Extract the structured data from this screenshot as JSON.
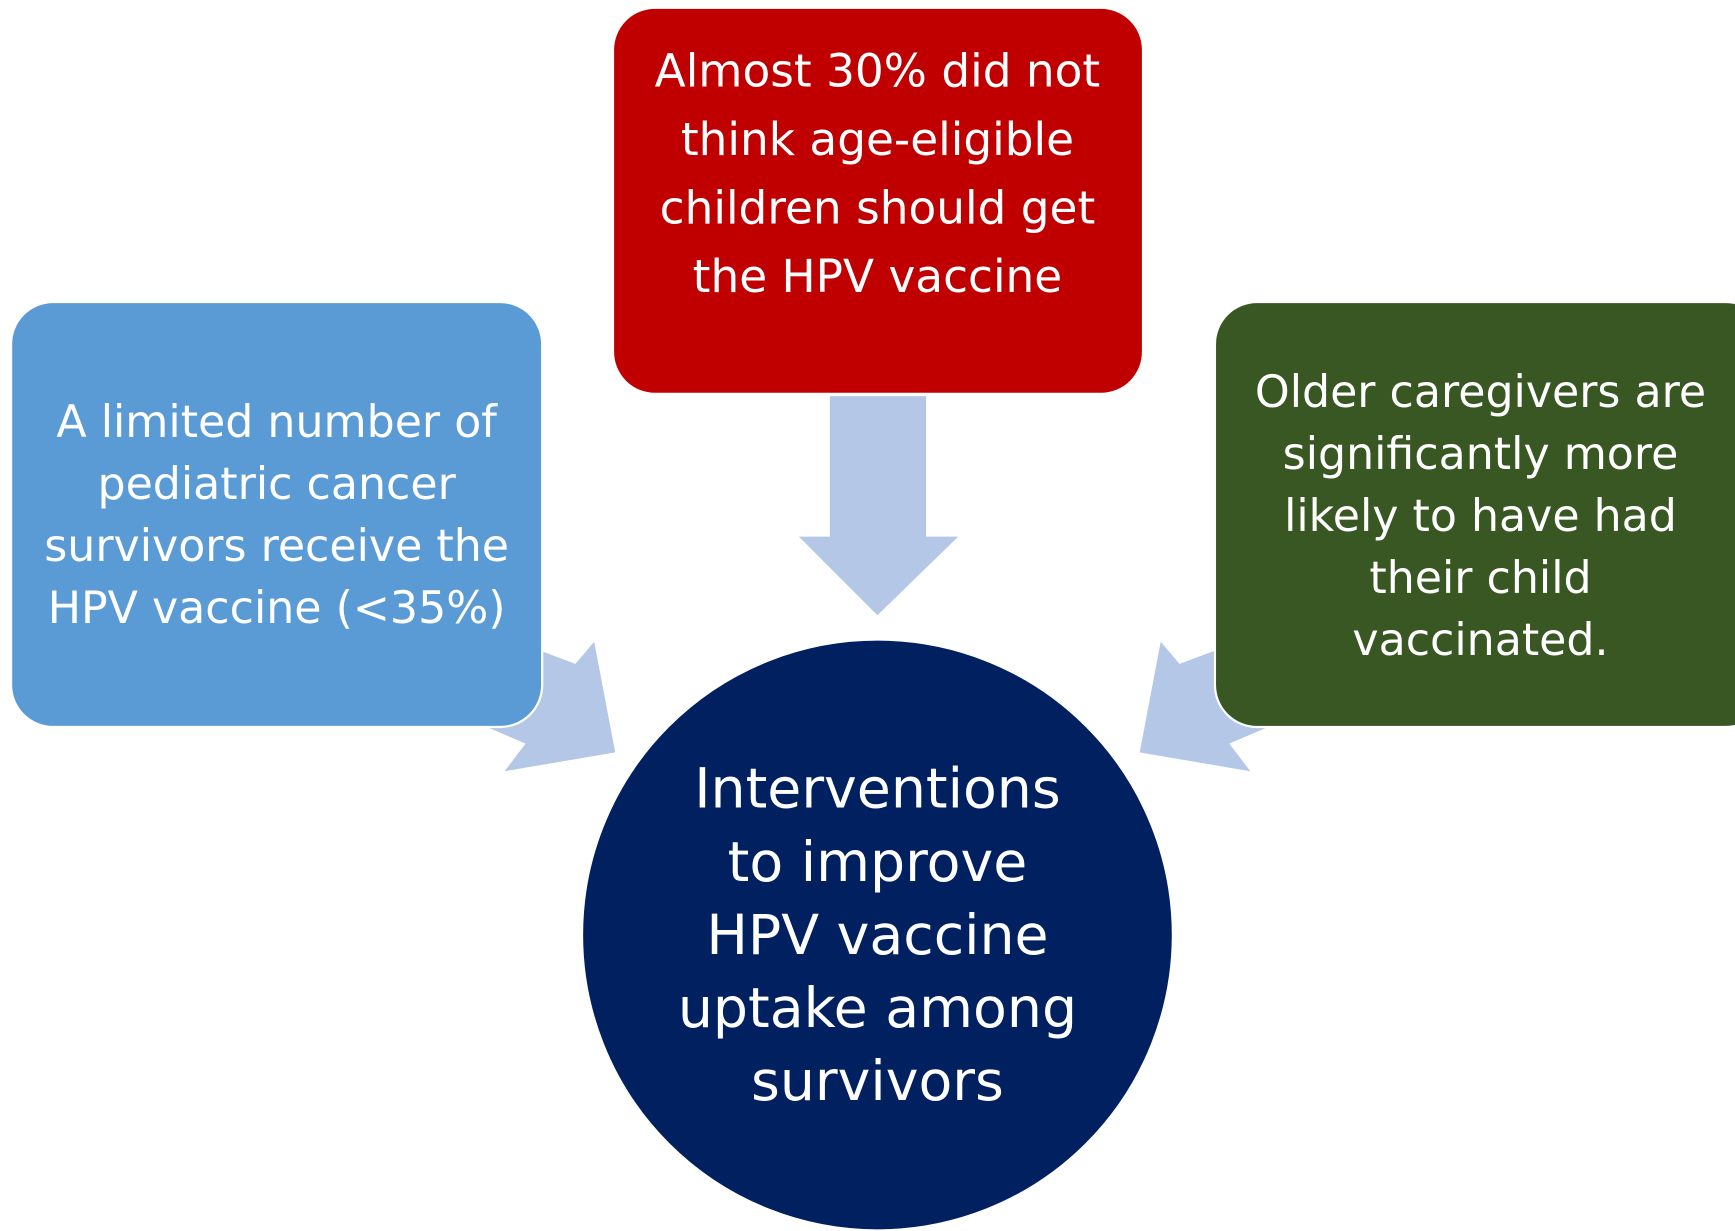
{
  "nodes": [
    {
      "lines": [
        "A limited number of",
        "pediatric cancer",
        "survivors receive the",
        "HPV vaccine (<35%)"
      ]
    },
    {
      "lines": [
        "Almost 30% did not",
        "think age-eligible",
        "children should get",
        "the HPV vaccine"
      ]
    },
    {
      "lines": [
        "Older caregivers are",
        "significantly more",
        "likely to have had",
        "their child",
        "vaccinated."
      ]
    },
    {
      "lines": [
        "Interventions",
        "to improve",
        "HPV vaccine",
        "uptake among",
        "survivors"
      ]
    }
  ]
}
